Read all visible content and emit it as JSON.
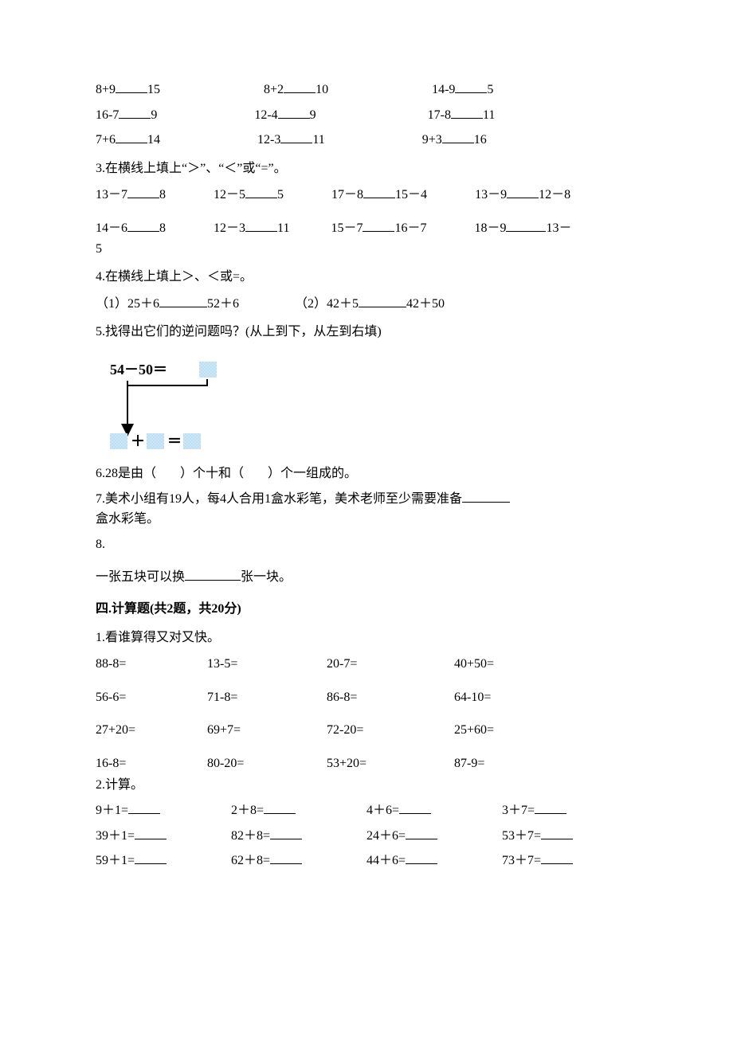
{
  "q2_rows": [
    [
      {
        "a": "8+9",
        "b": "15",
        "gap": 130
      },
      {
        "a": "8+2",
        "b": "10",
        "gap": 130
      },
      {
        "a": "14-9",
        "b": "5",
        "gap": 0
      }
    ],
    [
      {
        "a": "16-7",
        "b": "9",
        "gap": 122
      },
      {
        "a": "12-4",
        "b": "9",
        "gap": 140
      },
      {
        "a": "17-8",
        "b": "11",
        "gap": 0
      }
    ],
    [
      {
        "a": "7+6",
        "b": "14",
        "gap": 122
      },
      {
        "a": "12-3",
        "b": "11",
        "gap": 122
      },
      {
        "a": "9+3",
        "b": "16",
        "gap": 0
      }
    ]
  ],
  "q3_label": "3.在横线上填上“＞”、“＜”或“=”。",
  "q3_rows": [
    [
      {
        "a": "13－7",
        "b": "8",
        "gap": 60
      },
      {
        "a": "12－5",
        "b": "5",
        "gap": 60
      },
      {
        "a": "17－8",
        "b": "15－4",
        "gap": 60
      },
      {
        "a": "13－9",
        "b": "12－8",
        "gap": 0
      }
    ],
    [
      {
        "a": "14－6",
        "b": "8",
        "gap": 60
      },
      {
        "a": "12－3",
        "b": "11",
        "gap": 52
      },
      {
        "a": "15－7",
        "b": "16－7",
        "gap": 60
      },
      {
        "a": "18－9",
        "b": "13－",
        "gap": 0
      }
    ]
  ],
  "q3_tail": "5",
  "q4_label": "4.在横线上填上＞、＜或=。",
  "q4_items": [
    {
      "prefix": "（1）25＋6",
      "suffix": "52＋6",
      "gap": 70
    },
    {
      "prefix": "（2）42＋5",
      "suffix": "42＋50",
      "gap": 0
    }
  ],
  "q5_label": "5.找得出它们的逆问题吗？(从上到下，从左到右填)",
  "q5_diagram": {
    "top_text": "54－50＝",
    "plus": "＋",
    "eq": "＝",
    "box_fill": "#cde6f5",
    "box_pattern": "#bcdff2",
    "text_color": "#000000",
    "arrow_color": "#000000",
    "font_size": 18,
    "font_weight": "bold"
  },
  "q6_parts": [
    "6.28是由（",
    "）个十和（",
    "）个一组成的。"
  ],
  "q7_parts": [
    "7.美术小组有19人，每4人合用1盒水彩笔，美术老师至少需要准备",
    "盒水彩笔。"
  ],
  "q8_label": "8.",
  "q8_parts": [
    "一张五块可以换",
    "张一块。"
  ],
  "section4_title": "四.计算题(共2题，共20分)",
  "c1_label": "1.看谁算得又对又快。",
  "c1_rows": [
    [
      "88-8=",
      "13-5=",
      "20-7=",
      "40+50="
    ],
    [
      "56-6=",
      "71-8=",
      "86-8=",
      "64-10="
    ],
    [
      "27+20=",
      "69+7=",
      "72-20=",
      "25+60="
    ],
    [
      "16-8=",
      "80-20=",
      "53+20=",
      "87-9="
    ]
  ],
  "c1_col_widths": [
    140,
    150,
    160,
    140
  ],
  "c2_label": "2.计算。",
  "c2_rows": [
    [
      "9＋1=",
      "2＋8=",
      "4＋6=",
      "3＋7="
    ],
    [
      "39＋1=",
      "82＋8=",
      "24＋6=",
      "53＋7="
    ],
    [
      "59＋1=",
      "62＋8=",
      "44＋6=",
      "73＋7="
    ]
  ],
  "c2_col_widths": [
    170,
    170,
    170,
    140
  ],
  "blank_width_small": 40,
  "blank_width_med": 50
}
